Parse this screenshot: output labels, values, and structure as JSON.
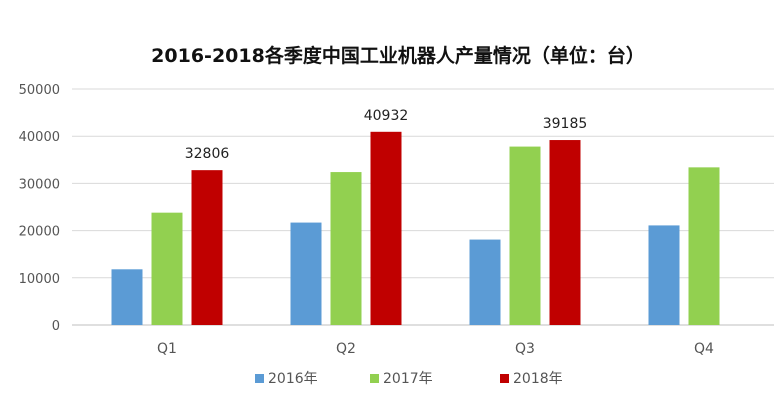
{
  "chart_data": {
    "type": "bar",
    "title": "2016-2018各季度中国工业机器人产量情况（单位：台）",
    "xlabel": "",
    "ylabel": "",
    "categories": [
      "Q1",
      "Q2",
      "Q3",
      "Q4"
    ],
    "ylim": [
      0,
      50000
    ],
    "yticks": [
      "0",
      "10000",
      "20000",
      "30000",
      "40000",
      "50000"
    ],
    "grid": true,
    "legend_position": "bottom",
    "series": [
      {
        "name": "2016年",
        "color": "#5b9bd5",
        "values": [
          11800,
          21700,
          18100,
          21100
        ],
        "labels": [
          "",
          "",
          "",
          ""
        ]
      },
      {
        "name": "2017年",
        "color": "#92d050",
        "values": [
          23800,
          32400,
          37800,
          33400
        ],
        "labels": [
          "",
          "",
          "",
          ""
        ]
      },
      {
        "name": "2018年",
        "color": "#c00000",
        "values": [
          32806,
          40932,
          39185,
          null
        ],
        "labels": [
          "32806",
          "40932",
          "39185",
          ""
        ]
      }
    ]
  }
}
